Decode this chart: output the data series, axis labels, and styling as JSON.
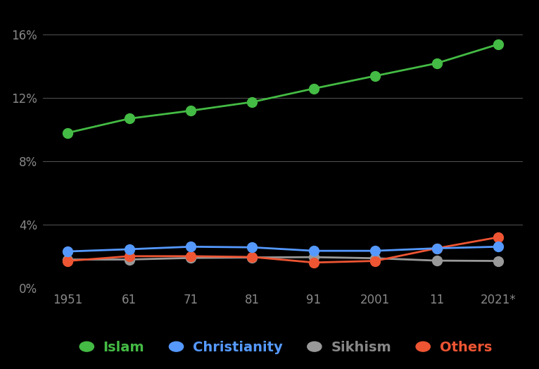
{
  "years": [
    1951,
    1961,
    1971,
    1981,
    1991,
    2001,
    2011,
    2021
  ],
  "x_labels": [
    "1951",
    "61",
    "71",
    "81",
    "91",
    "2001",
    "11",
    "2021*"
  ],
  "islam": [
    9.8,
    10.7,
    11.2,
    11.75,
    12.6,
    13.4,
    14.2,
    15.4
  ],
  "christianity": [
    2.3,
    2.44,
    2.6,
    2.56,
    2.34,
    2.34,
    2.5,
    2.6
  ],
  "sikhism": [
    1.79,
    1.79,
    1.89,
    1.92,
    1.94,
    1.87,
    1.72,
    1.7
  ],
  "others": [
    1.7,
    2.0,
    2.0,
    1.95,
    1.6,
    1.7,
    2.5,
    3.2
  ],
  "islam_color": "#44bb44",
  "christianity_color": "#5599ff",
  "sikhism_color": "#999999",
  "others_color": "#ee5533",
  "bg_color": "#000000",
  "text_color": "#888888",
  "grid_color": "#555555",
  "islam_label_color": "#44bb44",
  "christianity_label_color": "#5599ff",
  "sikhism_label_color": "#888888",
  "others_label_color": "#ee5533",
  "linewidth": 2.0,
  "markersize": 10
}
